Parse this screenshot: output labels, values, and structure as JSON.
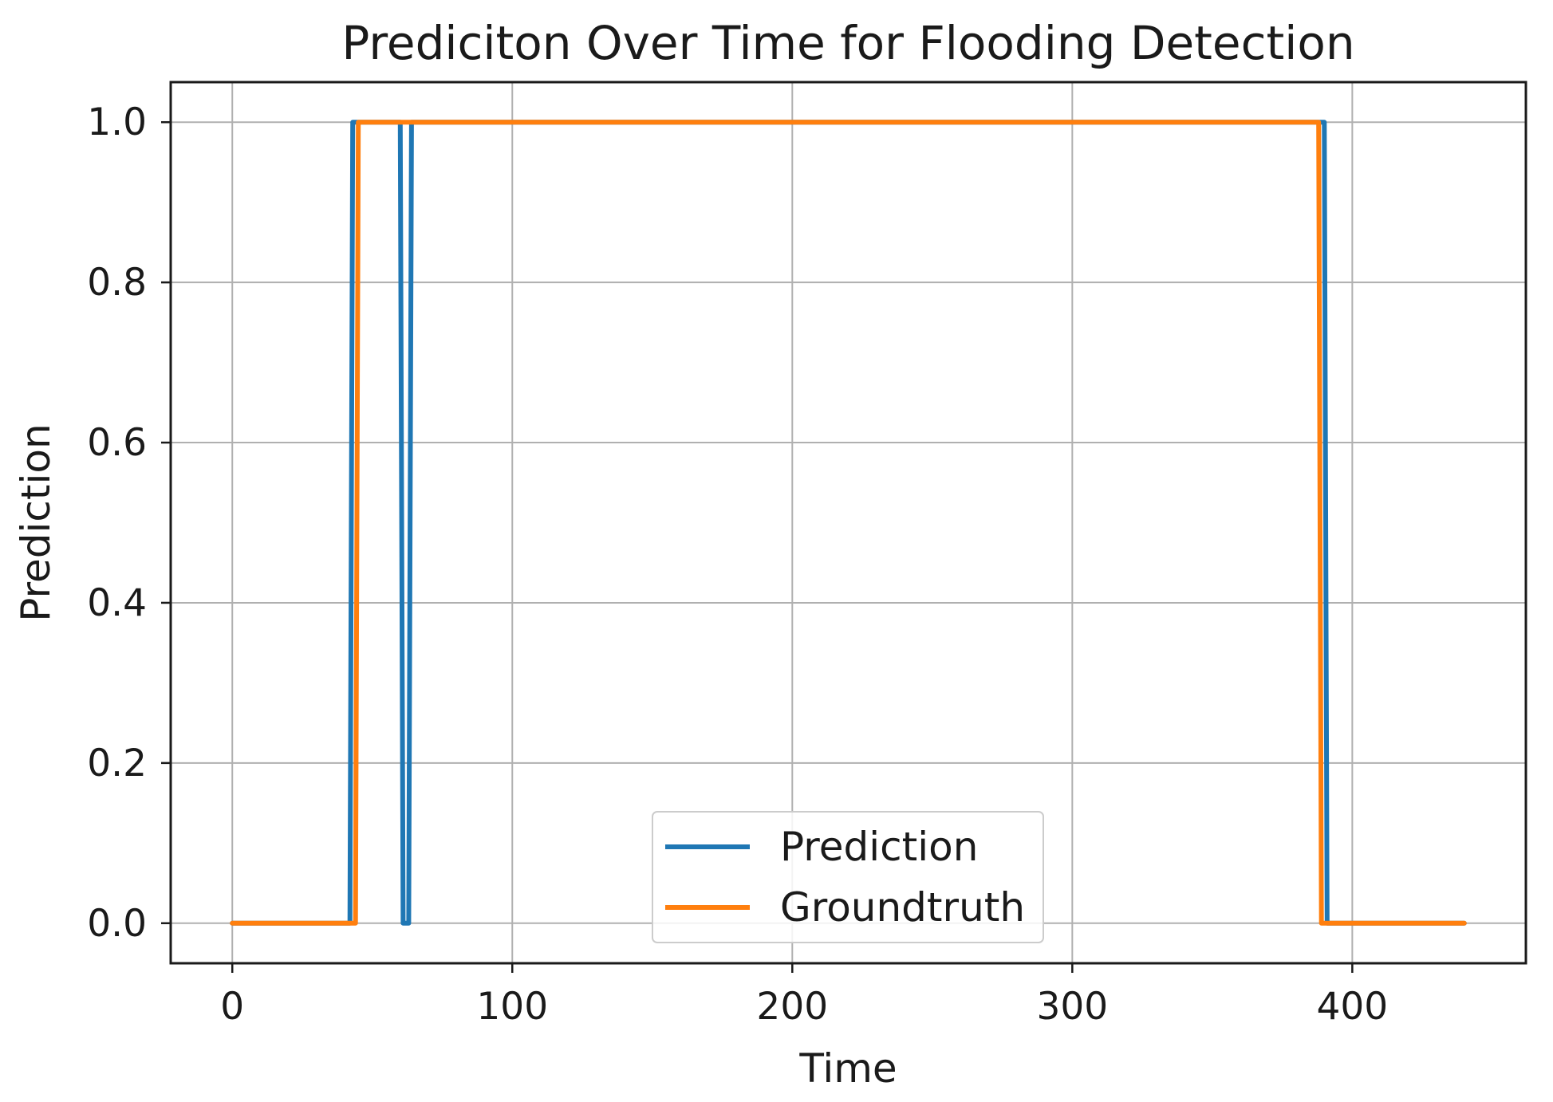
{
  "chart_data": {
    "type": "line",
    "title": "Prediciton Over Time for Flooding Detection",
    "xlabel": "Time",
    "ylabel": "Prediction",
    "xlim": [
      -22,
      462
    ],
    "ylim": [
      -0.05,
      1.05
    ],
    "xticks": [
      0,
      100,
      200,
      300,
      400
    ],
    "yticks": [
      0.0,
      0.2,
      0.4,
      0.6,
      0.8,
      1.0
    ],
    "xtick_labels": [
      "0",
      "100",
      "200",
      "300",
      "400"
    ],
    "ytick_labels": [
      "0.0",
      "0.2",
      "0.4",
      "0.6",
      "0.8",
      "1.0"
    ],
    "grid": true,
    "legend_placement": "lower center",
    "series": [
      {
        "name": "Prediction",
        "color": "#1f77b4",
        "x": [
          0,
          42,
          43,
          60,
          61,
          63,
          64,
          390,
          391,
          440
        ],
        "y": [
          0,
          0,
          1,
          1,
          0,
          0,
          1,
          1,
          0,
          0
        ]
      },
      {
        "name": "Groundtruth",
        "color": "#ff7f0e",
        "x": [
          0,
          44,
          45,
          388,
          389,
          440
        ],
        "y": [
          0,
          0,
          1,
          1,
          0,
          0
        ]
      }
    ]
  }
}
